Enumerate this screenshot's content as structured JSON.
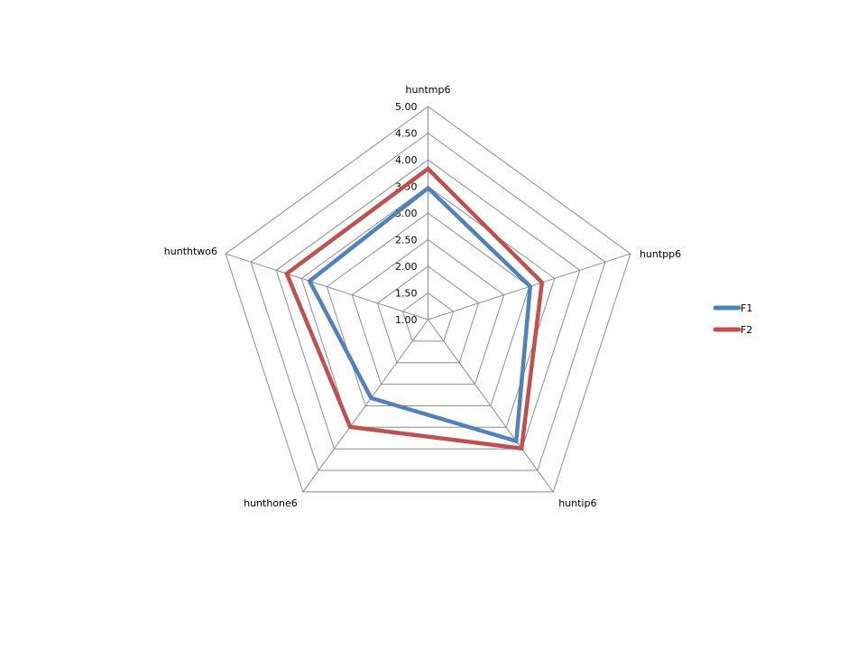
{
  "chart_data": {
    "type": "radar",
    "title": "",
    "axes": [
      "huntmp6",
      "huntpp6",
      "huntip6",
      "hunthone6",
      "hunthtwo6"
    ],
    "range": [
      1.0,
      5.0
    ],
    "ticks": [
      "1.00",
      "1.50",
      "2.00",
      "2.50",
      "3.00",
      "3.50",
      "4.00",
      "4.50",
      "5.00"
    ],
    "grid": true,
    "legend_position": "right",
    "series": [
      {
        "name": "F1",
        "color": "#4F81BD",
        "values": [
          3.47,
          3.02,
          3.82,
          2.82,
          3.34
        ]
      },
      {
        "name": "F2",
        "color": "#C0504D",
        "values": [
          3.83,
          3.25,
          3.99,
          3.49,
          3.79
        ]
      }
    ]
  },
  "legend": {
    "items": [
      {
        "label": "F1",
        "color": "#4F81BD"
      },
      {
        "label": "F2",
        "color": "#C0504D"
      }
    ]
  }
}
